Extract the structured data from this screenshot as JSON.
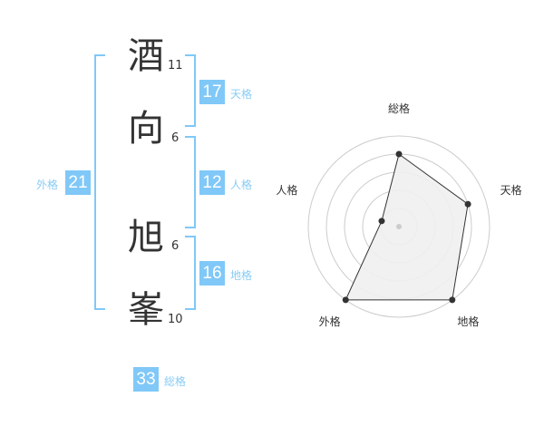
{
  "name": {
    "chars": [
      {
        "char": "酒",
        "strokes": "11"
      },
      {
        "char": "向",
        "strokes": "6"
      },
      {
        "char": "旭",
        "strokes": "6"
      },
      {
        "char": "峯",
        "strokes": "10"
      }
    ]
  },
  "fortunes": {
    "tenkaku": {
      "label": "天格",
      "value": "17"
    },
    "jinkaku": {
      "label": "人格",
      "value": "12"
    },
    "chikaku": {
      "label": "地格",
      "value": "16"
    },
    "gaikaku": {
      "label": "外格",
      "value": "21"
    },
    "soukaku": {
      "label": "総格",
      "value": "33"
    }
  },
  "colors": {
    "accent": "#80c8f8",
    "label": "#88ccf5",
    "radar_fill": "#f0f0f0",
    "radar_line": "#333333"
  },
  "chart_data": {
    "type": "radar",
    "axes": [
      "総格",
      "天格",
      "地格",
      "外格",
      "人格"
    ],
    "values": [
      4,
      4,
      5,
      5,
      1
    ],
    "max": 5,
    "rings": 5
  }
}
